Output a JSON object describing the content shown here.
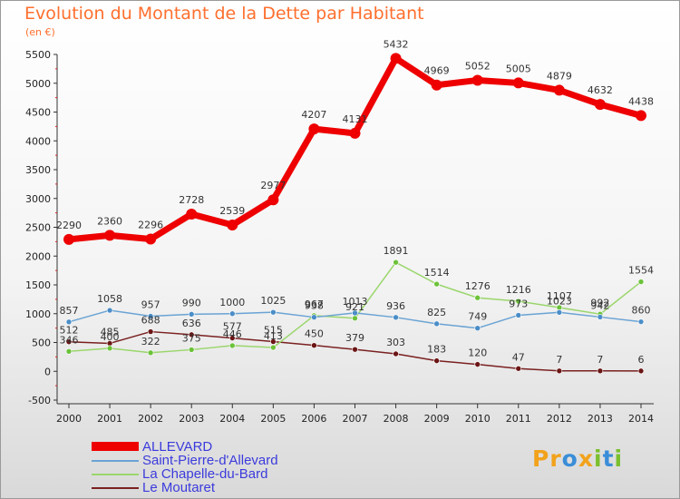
{
  "title": "Evolution du Montant de la Dette par Habitant",
  "unit": "(en €)",
  "logo": {
    "p": "Pr",
    "o": "o",
    "x": "x",
    "i": "i",
    "t": "t",
    "i2": "i"
  },
  "chart_data": {
    "type": "line",
    "title": "Evolution du Montant de la Dette par Habitant",
    "ylabel": "(en €)",
    "xlabel": "",
    "ylim": [
      -500,
      5500
    ],
    "ytick_step": 500,
    "grid": false,
    "legend_position": "bottom-left",
    "x": [
      "2000",
      "2001",
      "2002",
      "2003",
      "2004",
      "2005",
      "2006",
      "2007",
      "2008",
      "2009",
      "2010",
      "2011",
      "2012",
      "2013",
      "2014"
    ],
    "series": [
      {
        "name": "ALLEVARD",
        "color": "#ee0000",
        "marker": "#ee0000",
        "width": 7,
        "dot": 6,
        "values": [
          2290,
          2360,
          2296,
          2728,
          2539,
          2977,
          4207,
          4131,
          5432,
          4969,
          5052,
          5005,
          4879,
          4632,
          4438
        ]
      },
      {
        "name": "Saint-Pierre-d'Allevard",
        "color": "#6aa3d4",
        "marker": "#4a8dc8",
        "width": 1.5,
        "dot": 3,
        "values": [
          857,
          1058,
          957,
          990,
          1000,
          1025,
          938,
          1013,
          936,
          825,
          749,
          973,
          1023,
          942,
          860
        ]
      },
      {
        "name": "La Chapelle-du-Bard",
        "color": "#9ad66c",
        "marker": "#6cc23a",
        "width": 1.5,
        "dot": 3,
        "values": [
          346,
          400,
          322,
          375,
          446,
          413,
          967,
          921,
          1891,
          1514,
          1276,
          1216,
          1107,
          992,
          1554
        ]
      },
      {
        "name": "Le Moutaret",
        "color": "#7a2020",
        "marker": "#6b1515",
        "width": 1.5,
        "dot": 3,
        "values": [
          512,
          485,
          688,
          636,
          577,
          515,
          450,
          379,
          303,
          183,
          120,
          47,
          7,
          7,
          6
        ]
      }
    ]
  }
}
